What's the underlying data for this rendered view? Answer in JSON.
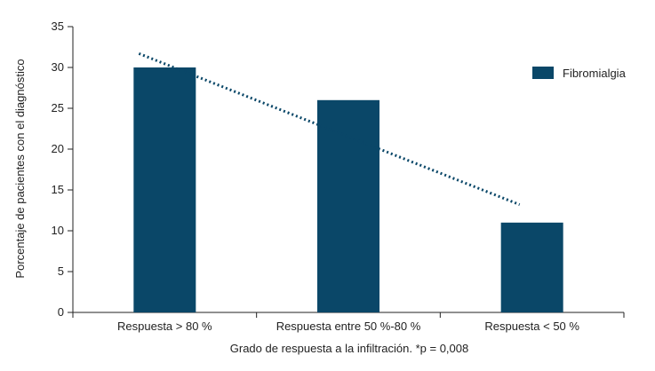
{
  "chart_data": {
    "type": "bar",
    "categories": [
      "Respuesta > 80 %",
      "Respuesta entre 50 %-80 %",
      "Respuesta < 50 %"
    ],
    "series": [
      {
        "name": "Fibromialgia",
        "values": [
          30,
          26,
          11
        ],
        "color": "#0a4768"
      }
    ],
    "trendline": {
      "style": "dotted",
      "color": "#0a4768",
      "y_start": 31.7,
      "y_end": 13.2
    },
    "title": "",
    "xlabel": "Grado de respuesta a la infiltración. *p = 0,008",
    "ylabel": "Porcentaje de pacientes con el diagnóstico",
    "ylim": [
      0,
      35
    ],
    "yticks": [
      "0",
      "5",
      "10",
      "15",
      "20",
      "25",
      "30",
      "35"
    ],
    "grid": false,
    "legend_position": "top-right"
  }
}
